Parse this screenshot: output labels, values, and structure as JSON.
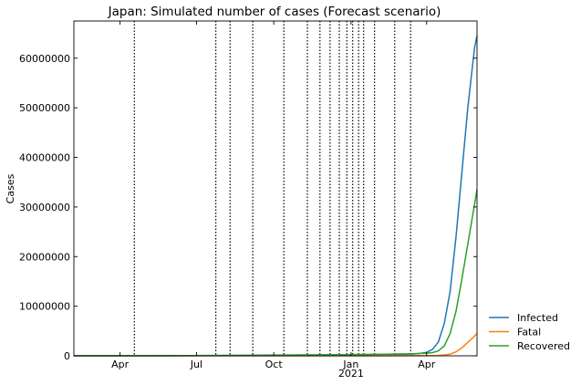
{
  "chart_data": {
    "type": "line",
    "title": "Japan: Simulated number of cases (Forecast scenario)",
    "xlabel": "",
    "ylabel": "Cases",
    "x_range": [
      "2020-02-06",
      "2021-05-31"
    ],
    "ylim": [
      0,
      67500000
    ],
    "y_ticks": [
      0,
      10000000,
      20000000,
      30000000,
      40000000,
      50000000,
      60000000
    ],
    "y_tick_labels": [
      "0",
      "10000000",
      "20000000",
      "30000000",
      "40000000",
      "50000000",
      "60000000"
    ],
    "x_ticks": [
      {
        "date": "2020-04-01",
        "label": "Apr",
        "sublabel": ""
      },
      {
        "date": "2020-07-01",
        "label": "Jul",
        "sublabel": ""
      },
      {
        "date": "2020-10-01",
        "label": "Oct",
        "sublabel": ""
      },
      {
        "date": "2021-01-01",
        "label": "Jan",
        "sublabel": "2021"
      },
      {
        "date": "2021-04-01",
        "label": "Apr",
        "sublabel": ""
      }
    ],
    "grid": false,
    "legend_position": "outside-lower-right",
    "change_dates": [
      "2020-04-18",
      "2020-07-24",
      "2020-08-10",
      "2020-09-06",
      "2020-10-13",
      "2020-11-10",
      "2020-11-25",
      "2020-12-07",
      "2020-12-18",
      "2020-12-27",
      "2021-01-03",
      "2021-01-10",
      "2021-01-16",
      "2021-01-29",
      "2021-02-22",
      "2021-03-13"
    ],
    "series": [
      {
        "name": "Infected",
        "color": "#1f77b4",
        "points": [
          [
            "2020-02-06",
            0
          ],
          [
            "2020-06-01",
            30000
          ],
          [
            "2020-09-01",
            120000
          ],
          [
            "2020-12-01",
            200000
          ],
          [
            "2021-02-01",
            280000
          ],
          [
            "2021-03-15",
            350000
          ],
          [
            "2021-03-25",
            500000
          ],
          [
            "2021-04-01",
            700000
          ],
          [
            "2021-04-08",
            1300000
          ],
          [
            "2021-04-15",
            2800000
          ],
          [
            "2021-04-22",
            6500000
          ],
          [
            "2021-04-29",
            13000000
          ],
          [
            "2021-05-06",
            24000000
          ],
          [
            "2021-05-13",
            37000000
          ],
          [
            "2021-05-20",
            50000000
          ],
          [
            "2021-05-24",
            56000000
          ],
          [
            "2021-05-28",
            62000000
          ],
          [
            "2021-05-31",
            64500000
          ]
        ]
      },
      {
        "name": "Fatal",
        "color": "#ff7f0e",
        "points": [
          [
            "2020-02-06",
            0
          ],
          [
            "2020-06-01",
            1000
          ],
          [
            "2020-09-01",
            2000
          ],
          [
            "2020-12-01",
            5000
          ],
          [
            "2021-02-01",
            10000
          ],
          [
            "2021-03-15",
            15000
          ],
          [
            "2021-04-01",
            20000
          ],
          [
            "2021-04-15",
            60000
          ],
          [
            "2021-04-22",
            150000
          ],
          [
            "2021-04-29",
            350000
          ],
          [
            "2021-05-06",
            800000
          ],
          [
            "2021-05-13",
            1600000
          ],
          [
            "2021-05-20",
            2700000
          ],
          [
            "2021-05-27",
            3800000
          ],
          [
            "2021-05-31",
            4500000
          ]
        ]
      },
      {
        "name": "Recovered",
        "color": "#2ca02c",
        "points": [
          [
            "2020-02-06",
            0
          ],
          [
            "2020-06-01",
            17000
          ],
          [
            "2020-09-01",
            70000
          ],
          [
            "2020-12-01",
            160000
          ],
          [
            "2021-02-01",
            300000
          ],
          [
            "2021-03-15",
            420000
          ],
          [
            "2021-04-01",
            520000
          ],
          [
            "2021-04-08",
            650000
          ],
          [
            "2021-04-15",
            1000000
          ],
          [
            "2021-04-22",
            2000000
          ],
          [
            "2021-04-29",
            4500000
          ],
          [
            "2021-05-06",
            9000000
          ],
          [
            "2021-05-13",
            15500000
          ],
          [
            "2021-05-20",
            22500000
          ],
          [
            "2021-05-27",
            29500000
          ],
          [
            "2021-05-31",
            33500000
          ]
        ]
      }
    ]
  }
}
